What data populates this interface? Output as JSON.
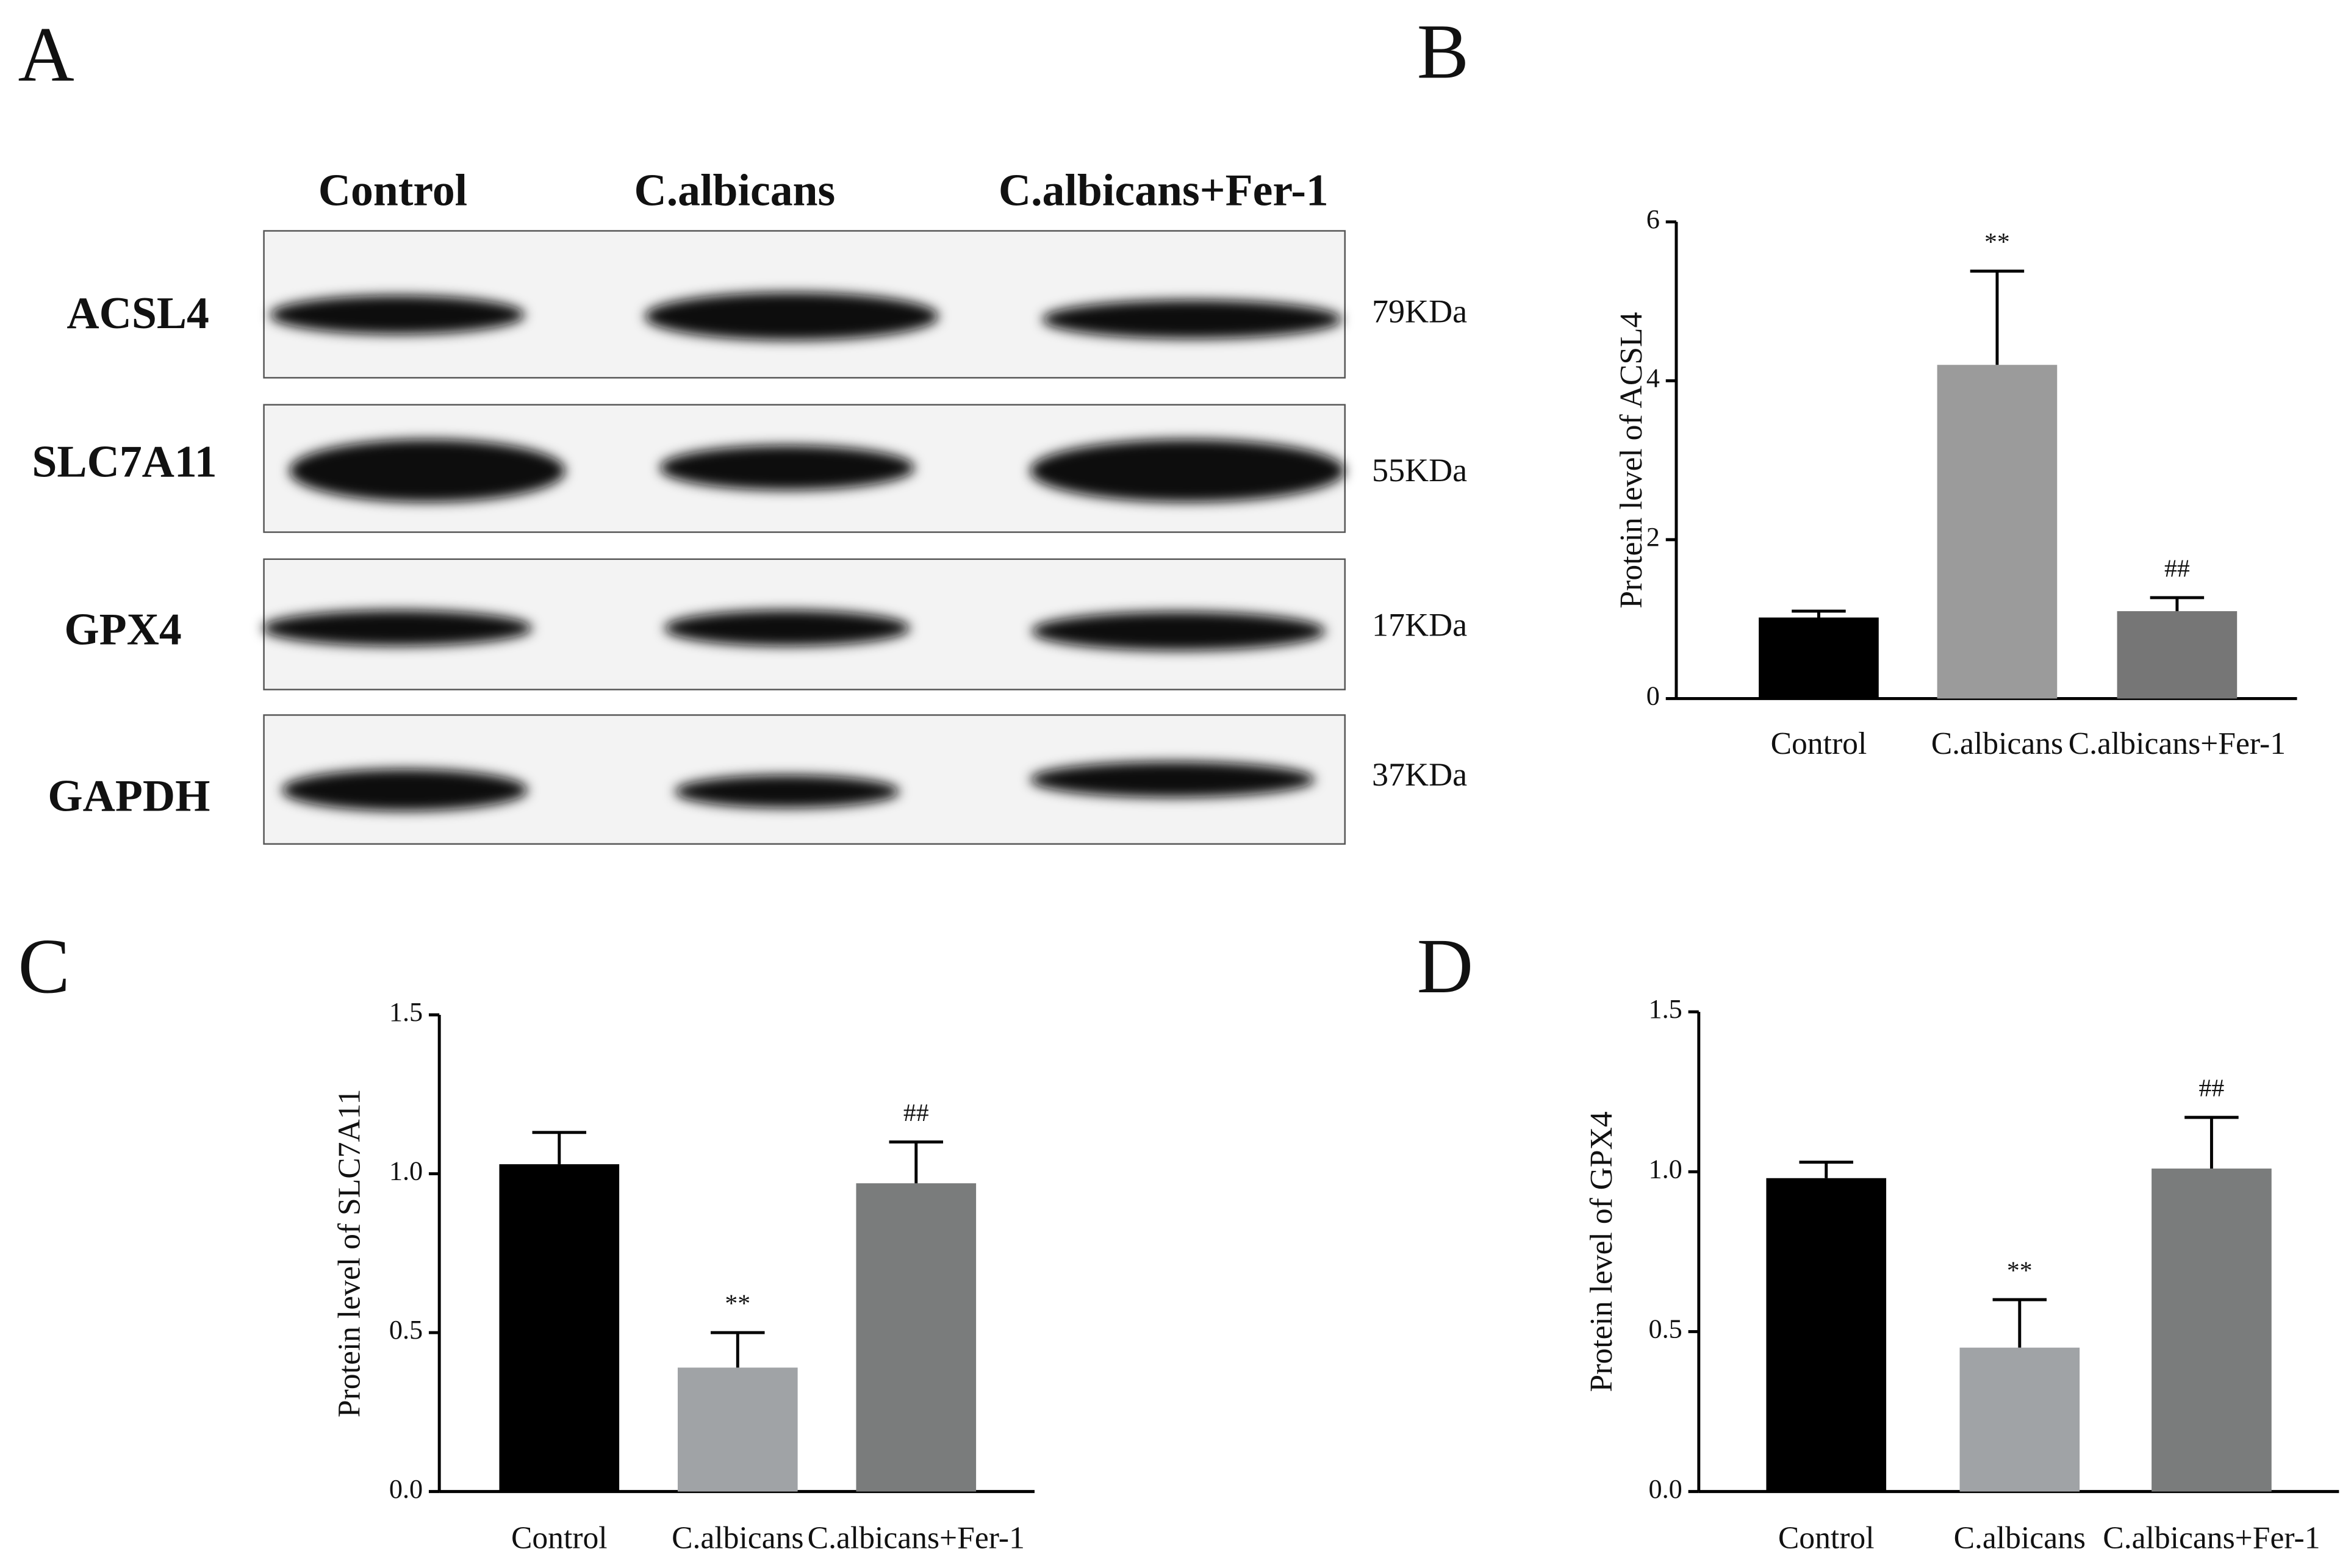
{
  "blot": {
    "panel": "A",
    "lanes": [
      "Control",
      "C.albicans",
      "C.albicans+Fer-1"
    ],
    "proteins": [
      {
        "name": "ACSL4",
        "size": "79KDa"
      },
      {
        "name": "SLC7A11",
        "size": "55KDa"
      },
      {
        "name": "GPX4",
        "size": "17KDa"
      },
      {
        "name": "GAPDH",
        "size": "37KDa"
      }
    ]
  },
  "chart_data": [
    {
      "type": "bar",
      "panel": "B",
      "y_label": "Protein level of ACSL4",
      "categories": [
        "Control",
        "C.albicans",
        "C.albicans+Fer-1"
      ],
      "values": [
        1.02,
        4.2,
        1.1
      ],
      "errors": [
        0.08,
        1.18,
        0.17
      ],
      "annotations": [
        null,
        "**",
        "##"
      ],
      "colors": [
        "#000000",
        "#9b9b9b",
        "#767676"
      ],
      "ylim": [
        0,
        6
      ],
      "yticks": [
        0,
        2,
        4,
        6
      ]
    },
    {
      "type": "bar",
      "panel": "C",
      "y_label": "Protein level of SLC7A11",
      "categories": [
        "Control",
        "C.albicans",
        "C.albicans+Fer-1"
      ],
      "values": [
        1.03,
        0.39,
        0.97
      ],
      "errors": [
        0.1,
        0.11,
        0.13
      ],
      "annotations": [
        null,
        "**",
        "##"
      ],
      "colors": [
        "#000000",
        "#a0a3a6",
        "#7a7c7c"
      ],
      "ylim": [
        0,
        1.5
      ],
      "yticks": [
        {
          "value": 0,
          "label": "0.0"
        },
        0.5,
        {
          "value": 1,
          "label": "1.0"
        },
        1.5
      ]
    },
    {
      "type": "bar",
      "panel": "D",
      "y_label": "Protein level of GPX4",
      "categories": [
        "Control",
        "C.albicans",
        "C.albicans+Fer-1"
      ],
      "values": [
        0.98,
        0.45,
        1.01
      ],
      "errors": [
        0.05,
        0.15,
        0.16
      ],
      "annotations": [
        null,
        "**",
        "##"
      ],
      "colors": [
        "#000000",
        "#a0a3a6",
        "#7a7c7c"
      ],
      "ylim": [
        0,
        1.5
      ],
      "yticks": [
        {
          "value": 0,
          "label": "0.0"
        },
        0.5,
        {
          "value": 1,
          "label": "1.0"
        },
        1.5
      ]
    }
  ]
}
